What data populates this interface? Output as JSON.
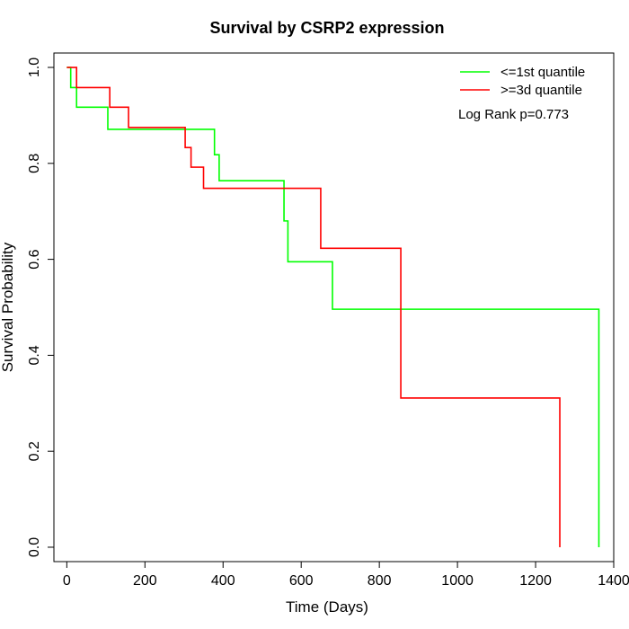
{
  "chart_data": {
    "type": "line",
    "step": true,
    "title": "Survival by CSRP2 expression",
    "xlabel": "Time (Days)",
    "ylabel": "Survival Probability",
    "xlim": [
      -33,
      1400
    ],
    "ylim": [
      -0.03,
      1.03
    ],
    "xticks": [
      0,
      200,
      400,
      600,
      800,
      1000,
      1200,
      1400
    ],
    "yticks": [
      0.0,
      0.2,
      0.4,
      0.6,
      0.8,
      1.0
    ],
    "xtick_labels": [
      "0",
      "200",
      "400",
      "600",
      "800",
      "1000",
      "1200",
      "1400"
    ],
    "ytick_labels": [
      "0.0",
      "0.2",
      "0.4",
      "0.6",
      "0.8",
      "1.0"
    ],
    "legend_position": "top-right",
    "annotation": "Log Rank p=0.773",
    "series": [
      {
        "name": "<=1st quantile",
        "color": "#00ff00",
        "x": [
          0,
          10,
          25,
          105,
          378,
          390,
          556,
          566,
          680,
          1362,
          1362
        ],
        "y": [
          1.0,
          0.958,
          0.917,
          0.871,
          0.818,
          0.764,
          0.68,
          0.595,
          0.496,
          0.496,
          0.0
        ]
      },
      {
        "name": ">=3d quantile",
        "color": "#ff0000",
        "x": [
          0,
          25,
          110,
          158,
          303,
          318,
          350,
          650,
          855,
          1262,
          1262
        ],
        "y": [
          1.0,
          0.958,
          0.917,
          0.875,
          0.833,
          0.792,
          0.748,
          0.623,
          0.311,
          0.311,
          0.0
        ]
      }
    ]
  }
}
